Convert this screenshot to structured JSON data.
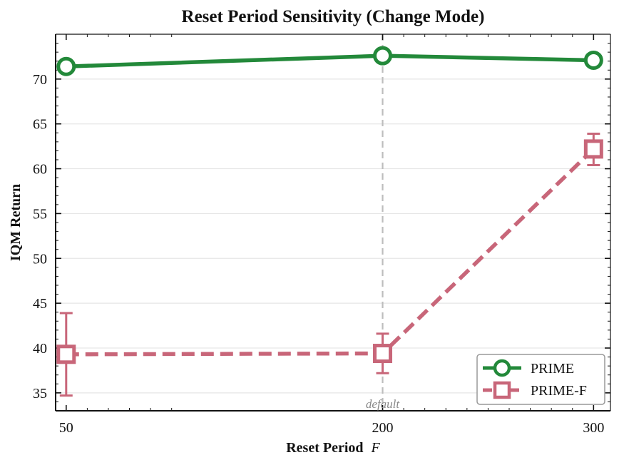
{
  "chart_data": {
    "type": "line",
    "title": "Reset Period Sensitivity (Change Mode)",
    "xlabel": "Reset Period",
    "xlabel_var": "F",
    "ylabel": "IQM Return",
    "x": [
      50,
      200,
      300
    ],
    "x_tick_labels": [
      "50",
      "200",
      "300"
    ],
    "xlim": [
      45,
      308
    ],
    "ylim": [
      33,
      75
    ],
    "y_ticks": [
      35,
      40,
      45,
      50,
      55,
      60,
      65,
      70
    ],
    "grid": "horizontal",
    "legend_position": "bottom-right",
    "series": [
      {
        "name": "PRIME",
        "values": [
          71.4,
          72.6,
          72.1
        ],
        "error_low": [
          71.4,
          72.6,
          72.1
        ],
        "error_high": [
          71.4,
          72.6,
          72.1
        ],
        "color": "#23893a",
        "line": "solid",
        "marker": "circle"
      },
      {
        "name": "PRIME-F",
        "values": [
          39.3,
          39.4,
          62.2
        ],
        "error_low": [
          34.7,
          37.2,
          60.4
        ],
        "error_high": [
          43.9,
          41.6,
          63.9
        ],
        "color": "#c86679",
        "line": "dashed",
        "marker": "square"
      }
    ],
    "annotation": {
      "text": "default",
      "x": 200
    }
  }
}
